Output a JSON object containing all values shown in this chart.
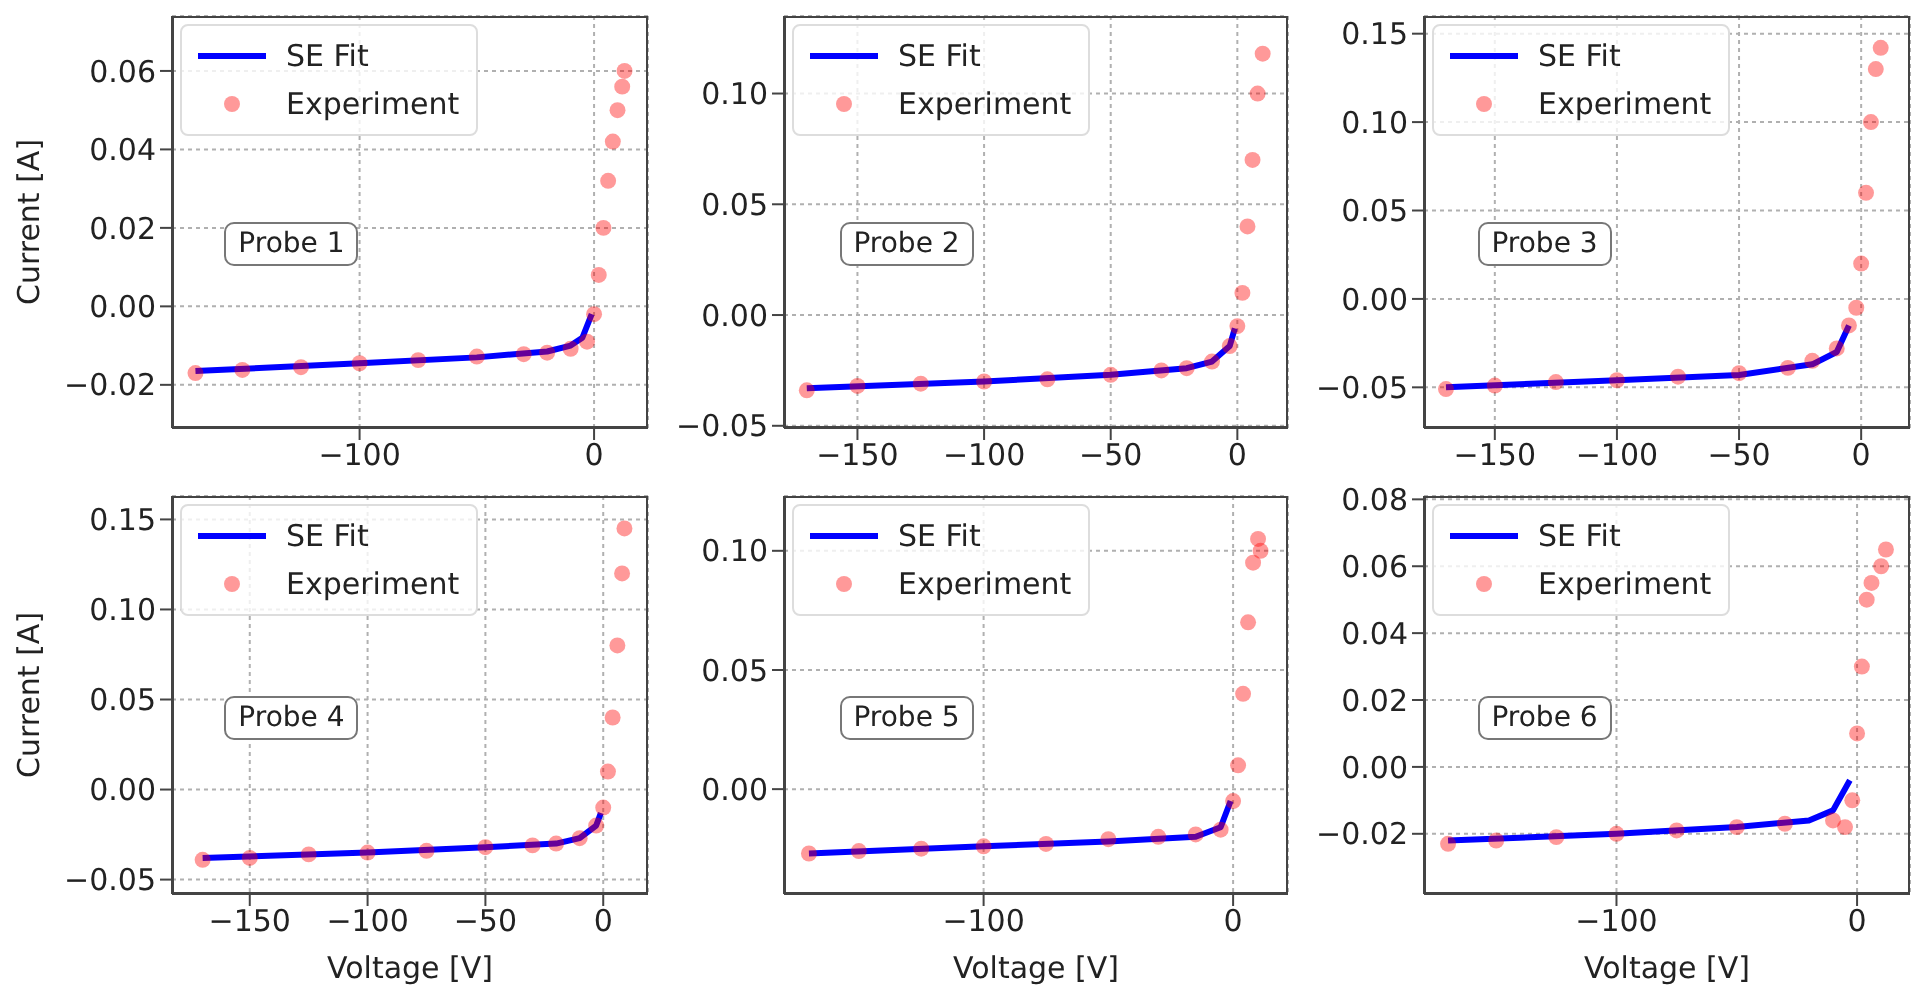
{
  "chart_data": [
    {
      "type": "line",
      "annotations": [
        "Probe 1"
      ],
      "ylabel": "Current [A]",
      "xlim": [
        -180,
        23
      ],
      "xticks": [
        {
          "value": -100,
          "label": "−100"
        },
        {
          "value": 0,
          "label": "0"
        }
      ],
      "ylim": [
        -0.031,
        0.074
      ],
      "yticks": [
        {
          "value": -0.02,
          "label": "−0.02"
        },
        {
          "value": 0,
          "label": "0.00"
        },
        {
          "value": 0.02,
          "label": "0.02"
        },
        {
          "value": 0.04,
          "label": "0.04"
        },
        {
          "value": 0.06,
          "label": "0.06"
        }
      ],
      "grid": true,
      "legend": "top left",
      "series": [
        {
          "name": "SE Fit",
          "color": "#0000ff",
          "x": [
            -170,
            -100,
            -50,
            -20,
            -10,
            -5,
            -1
          ],
          "values": [
            -0.0165,
            -0.0145,
            -0.013,
            -0.0115,
            -0.01,
            -0.008,
            -0.002
          ]
        },
        {
          "name": "Experiment",
          "type": "scatter",
          "color": "#ff0000",
          "x": [
            -170,
            -150,
            -125,
            -100,
            -75,
            -50,
            -30,
            -20,
            -10,
            -3,
            0,
            2,
            4,
            6,
            8,
            10,
            12,
            13
          ],
          "values": [
            -0.017,
            -0.0162,
            -0.0155,
            -0.0145,
            -0.0137,
            -0.0128,
            -0.0122,
            -0.0118,
            -0.0108,
            -0.009,
            -0.002,
            0.008,
            0.02,
            0.032,
            0.042,
            0.05,
            0.056,
            0.06
          ]
        }
      ]
    },
    {
      "type": "line",
      "annotations": [
        "Probe 2"
      ],
      "xlim": [
        -179,
        20
      ],
      "xticks": [
        {
          "value": -150,
          "label": "−150"
        },
        {
          "value": -100,
          "label": "−100"
        },
        {
          "value": -50,
          "label": "−50"
        },
        {
          "value": 0,
          "label": "0"
        }
      ],
      "ylim": [
        -0.051,
        0.135
      ],
      "yticks": [
        {
          "value": -0.05,
          "label": "−0.05"
        },
        {
          "value": 0,
          "label": "0.00"
        },
        {
          "value": 0.05,
          "label": "0.05"
        },
        {
          "value": 0.1,
          "label": "0.10"
        }
      ],
      "grid": true,
      "legend": "top left",
      "series": [
        {
          "name": "SE Fit",
          "color": "#0000ff",
          "x": [
            -170,
            -100,
            -50,
            -20,
            -10,
            -3,
            -1
          ],
          "values": [
            -0.033,
            -0.03,
            -0.027,
            -0.024,
            -0.021,
            -0.014,
            -0.006
          ]
        },
        {
          "name": "Experiment",
          "type": "scatter",
          "color": "#ff0000",
          "x": [
            -170,
            -150,
            -125,
            -100,
            -75,
            -50,
            -30,
            -20,
            -10,
            -3,
            0,
            2,
            4,
            6,
            8,
            10
          ],
          "values": [
            -0.034,
            -0.032,
            -0.031,
            -0.03,
            -0.029,
            -0.027,
            -0.025,
            -0.024,
            -0.021,
            -0.014,
            -0.005,
            0.01,
            0.04,
            0.07,
            0.1,
            0.118
          ]
        }
      ]
    },
    {
      "type": "line",
      "annotations": [
        "Probe 3"
      ],
      "xlim": [
        -179,
        20
      ],
      "xticks": [
        {
          "value": -150,
          "label": "−150"
        },
        {
          "value": -100,
          "label": "−100"
        },
        {
          "value": -50,
          "label": "−50"
        },
        {
          "value": 0,
          "label": "0"
        }
      ],
      "ylim": [
        -0.073,
        0.16
      ],
      "yticks": [
        {
          "value": -0.05,
          "label": "−0.05"
        },
        {
          "value": 0,
          "label": "0.00"
        },
        {
          "value": 0.05,
          "label": "0.05"
        },
        {
          "value": 0.1,
          "label": "0.10"
        },
        {
          "value": 0.15,
          "label": "0.15"
        }
      ],
      "grid": true,
      "legend": "top left",
      "series": [
        {
          "name": "SE Fit",
          "color": "#0000ff",
          "x": [
            -170,
            -100,
            -50,
            -20,
            -10,
            -5
          ],
          "values": [
            -0.05,
            -0.046,
            -0.043,
            -0.037,
            -0.03,
            -0.015
          ]
        },
        {
          "name": "Experiment",
          "type": "scatter",
          "color": "#ff0000",
          "x": [
            -170,
            -150,
            -125,
            -100,
            -75,
            -50,
            -30,
            -20,
            -10,
            -5,
            -2,
            0,
            2,
            4,
            6,
            8
          ],
          "values": [
            -0.051,
            -0.049,
            -0.047,
            -0.046,
            -0.044,
            -0.042,
            -0.039,
            -0.035,
            -0.028,
            -0.015,
            -0.005,
            0.02,
            0.06,
            0.1,
            0.13,
            0.142
          ]
        }
      ]
    },
    {
      "type": "line",
      "annotations": [
        "Probe 4"
      ],
      "xlabel": "Voltage [V]",
      "ylabel": "Current [A]",
      "xlim": [
        -183,
        19
      ],
      "xticks": [
        {
          "value": -150,
          "label": "−150"
        },
        {
          "value": -100,
          "label": "−100"
        },
        {
          "value": -50,
          "label": "−50"
        },
        {
          "value": 0,
          "label": "0"
        }
      ],
      "ylim": [
        -0.058,
        0.163
      ],
      "yticks": [
        {
          "value": -0.05,
          "label": "−0.05"
        },
        {
          "value": 0,
          "label": "0.00"
        },
        {
          "value": 0.05,
          "label": "0.05"
        },
        {
          "value": 0.1,
          "label": "0.10"
        },
        {
          "value": 0.15,
          "label": "0.15"
        }
      ],
      "grid": true,
      "legend": "top left",
      "series": [
        {
          "name": "SE Fit",
          "color": "#0000ff",
          "x": [
            -170,
            -100,
            -50,
            -20,
            -10,
            -3,
            -1
          ],
          "values": [
            -0.038,
            -0.035,
            -0.032,
            -0.03,
            -0.027,
            -0.02,
            -0.013
          ]
        },
        {
          "name": "Experiment",
          "type": "scatter",
          "color": "#ff0000",
          "x": [
            -170,
            -150,
            -125,
            -100,
            -75,
            -50,
            -30,
            -20,
            -10,
            -3,
            0,
            2,
            4,
            6,
            8,
            9
          ],
          "values": [
            -0.039,
            -0.038,
            -0.036,
            -0.035,
            -0.034,
            -0.032,
            -0.031,
            -0.03,
            -0.027,
            -0.02,
            -0.01,
            0.01,
            0.04,
            0.08,
            0.12,
            0.145
          ]
        }
      ]
    },
    {
      "type": "line",
      "annotations": [
        "Probe 5"
      ],
      "xlabel": "Voltage [V]",
      "xlim": [
        -180,
        22
      ],
      "xticks": [
        {
          "value": -100,
          "label": "−100"
        },
        {
          "value": 0,
          "label": "0"
        }
      ],
      "ylim": [
        -0.044,
        0.123
      ],
      "yticks": [
        {
          "value": 0,
          "label": "0.00"
        },
        {
          "value": 0.05,
          "label": "0.05"
        },
        {
          "value": 0.1,
          "label": "0.10"
        }
      ],
      "grid": true,
      "legend": "top left",
      "series": [
        {
          "name": "SE Fit",
          "color": "#0000ff",
          "x": [
            -170,
            -100,
            -50,
            -15,
            -5,
            -1
          ],
          "values": [
            -0.027,
            -0.024,
            -0.022,
            -0.02,
            -0.016,
            -0.005
          ]
        },
        {
          "name": "Experiment",
          "type": "scatter",
          "color": "#ff0000",
          "x": [
            -170,
            -150,
            -125,
            -100,
            -75,
            -50,
            -30,
            -15,
            -5,
            0,
            2,
            4,
            6,
            8,
            10,
            11
          ],
          "values": [
            -0.027,
            -0.026,
            -0.025,
            -0.024,
            -0.023,
            -0.021,
            -0.02,
            -0.019,
            -0.017,
            -0.005,
            0.01,
            0.04,
            0.07,
            0.095,
            0.105,
            0.1
          ]
        }
      ]
    },
    {
      "type": "line",
      "annotations": [
        "Probe 6"
      ],
      "xlabel": "Voltage [V]",
      "xlim": [
        -180,
        22
      ],
      "xticks": [
        {
          "value": -100,
          "label": "−100"
        },
        {
          "value": 0,
          "label": "0"
        }
      ],
      "ylim": [
        -0.038,
        0.081
      ],
      "yticks": [
        {
          "value": -0.02,
          "label": "−0.02"
        },
        {
          "value": 0,
          "label": "0.00"
        },
        {
          "value": 0.02,
          "label": "0.02"
        },
        {
          "value": 0.04,
          "label": "0.04"
        },
        {
          "value": 0.06,
          "label": "0.06"
        },
        {
          "value": 0.08,
          "label": "0.08"
        }
      ],
      "grid": true,
      "legend": "top left",
      "series": [
        {
          "name": "SE Fit",
          "color": "#0000ff",
          "x": [
            -170,
            -100,
            -50,
            -20,
            -10,
            -3
          ],
          "values": [
            -0.022,
            -0.02,
            -0.018,
            -0.016,
            -0.013,
            -0.004
          ]
        },
        {
          "name": "Experiment",
          "type": "scatter",
          "color": "#ff0000",
          "x": [
            -170,
            -150,
            -125,
            -100,
            -75,
            -50,
            -30,
            -10,
            -5,
            -2,
            0,
            2,
            4,
            6,
            10,
            12
          ],
          "values": [
            -0.023,
            -0.022,
            -0.021,
            -0.02,
            -0.019,
            -0.018,
            -0.017,
            -0.016,
            -0.018,
            -0.01,
            0.01,
            0.03,
            0.05,
            0.055,
            0.06,
            0.065
          ]
        }
      ]
    }
  ]
}
